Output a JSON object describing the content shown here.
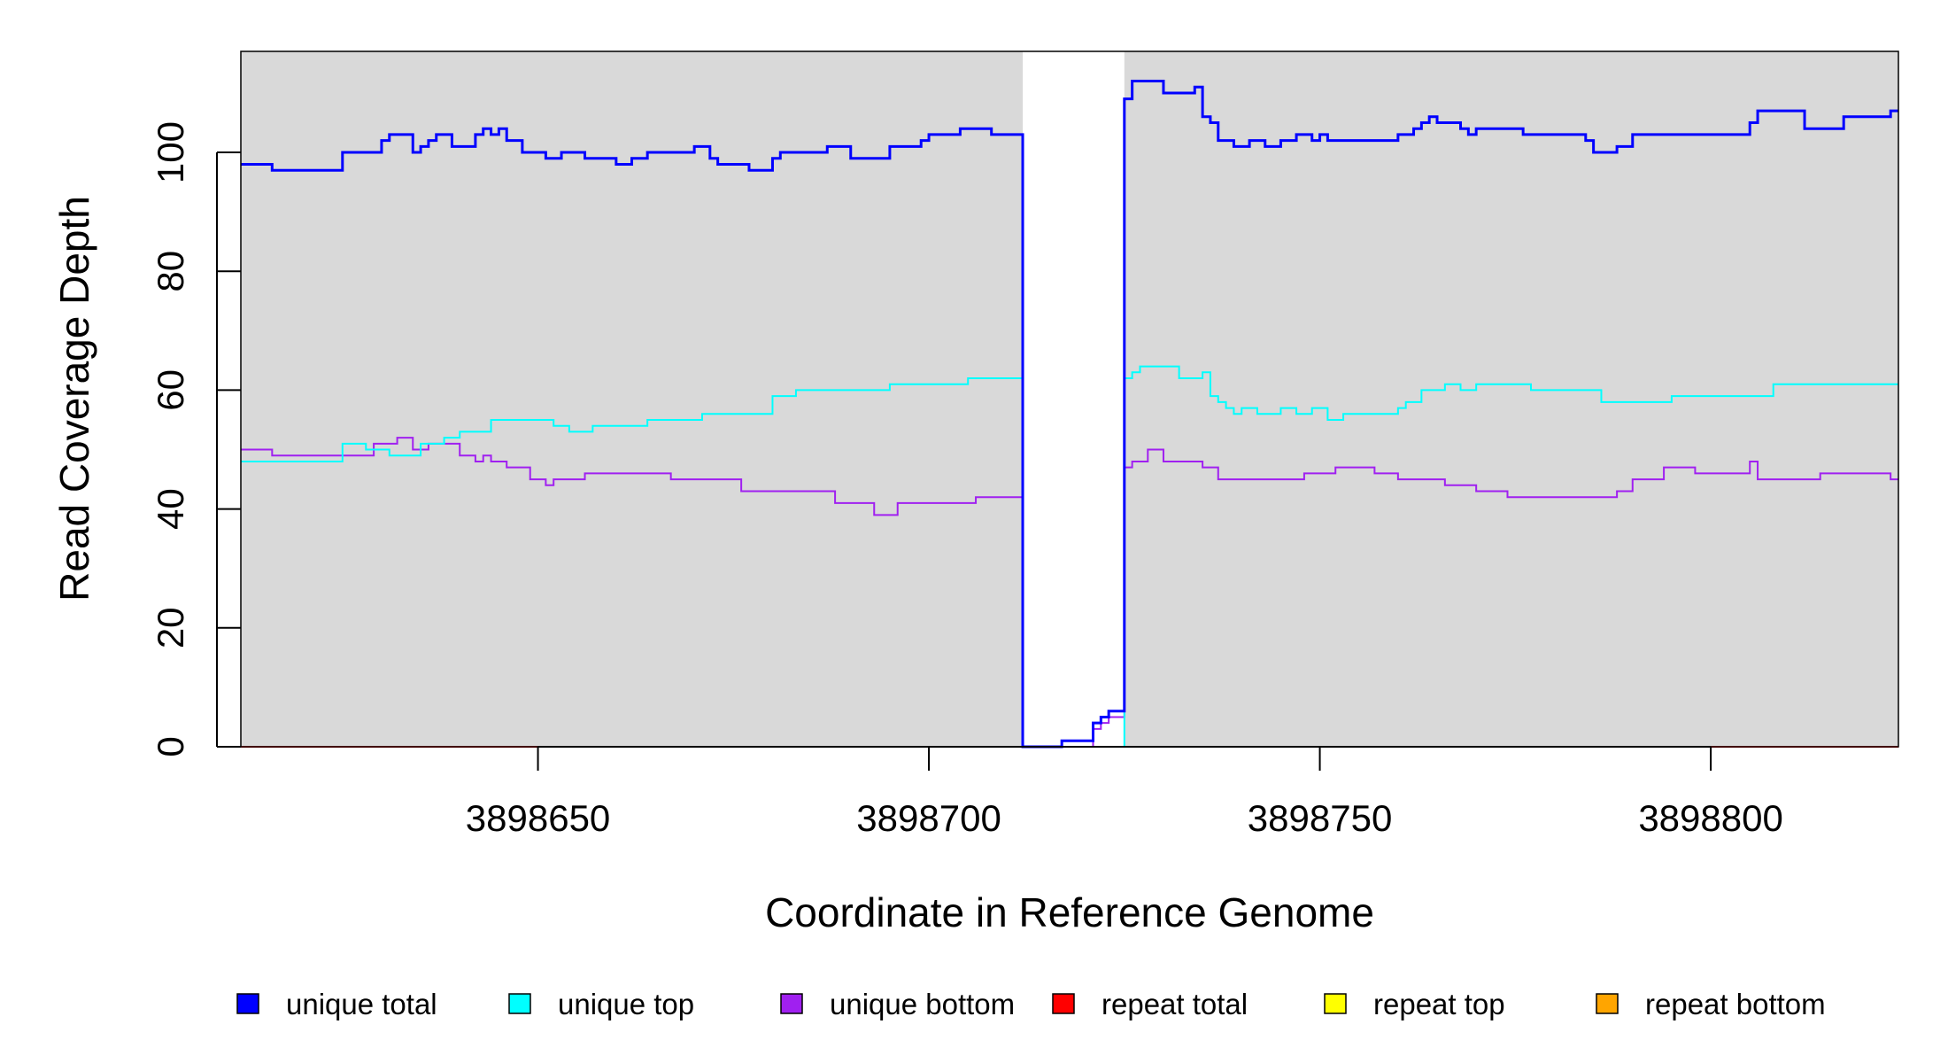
{
  "chart_data": {
    "type": "line",
    "step": true,
    "title": "",
    "xlabel": "Coordinate in Reference Genome",
    "ylabel": "Read Coverage Depth",
    "xlim": [
      3898612,
      3898824
    ],
    "ylim": [
      0,
      117
    ],
    "xticks": [
      3898650,
      3898700,
      3898750,
      3898800
    ],
    "yticks": [
      0,
      20,
      40,
      60,
      80,
      100
    ],
    "background_color": "#d9d9d9",
    "highlight_region": {
      "x": [
        3898712,
        3898725
      ],
      "color": "#ffffff"
    },
    "grid": false,
    "legend_position": "bottom",
    "legend": [
      {
        "name": "unique total",
        "color": "#0000ff"
      },
      {
        "name": "unique top",
        "color": "#00ffff"
      },
      {
        "name": "unique bottom",
        "color": "#a020f0"
      },
      {
        "name": "repeat total",
        "color": "#ff0000"
      },
      {
        "name": "repeat top",
        "color": "#ffff00"
      },
      {
        "name": "repeat bottom",
        "color": "#ffa500"
      }
    ],
    "series": [
      {
        "name": "unique total",
        "color": "#0000ff",
        "x": [
          3898612,
          3898616,
          3898625,
          3898630,
          3898631,
          3898634,
          3898635,
          3898636,
          3898637,
          3898639,
          3898642,
          3898643,
          3898644,
          3898645,
          3898646,
          3898648,
          3898651,
          3898653,
          3898656,
          3898660,
          3898662,
          3898664,
          3898670,
          3898672,
          3898673,
          3898677,
          3898680,
          3898681,
          3898687,
          3898690,
          3898695,
          3898699,
          3898700,
          3898704,
          3898708,
          3898712,
          3898717,
          3898721,
          3898722,
          3898723,
          3898725,
          3898726,
          3898730,
          3898734,
          3898735,
          3898736,
          3898737,
          3898739,
          3898741,
          3898743,
          3898745,
          3898747,
          3898749,
          3898750,
          3898751,
          3898760,
          3898762,
          3898763,
          3898764,
          3898765,
          3898768,
          3898769,
          3898770,
          3898776,
          3898784,
          3898785,
          3898788,
          3898790,
          3898805,
          3898806,
          3898812,
          3898817,
          3898823
        ],
        "y": [
          98,
          97,
          100,
          102,
          103,
          100,
          101,
          102,
          103,
          101,
          103,
          104,
          103,
          104,
          102,
          100,
          99,
          100,
          99,
          98,
          99,
          100,
          101,
          99,
          98,
          97,
          99,
          100,
          101,
          99,
          101,
          102,
          103,
          104,
          103,
          0,
          1,
          4,
          5,
          6,
          109,
          112,
          110,
          111,
          106,
          105,
          102,
          101,
          102,
          101,
          102,
          103,
          102,
          103,
          102,
          103,
          104,
          105,
          106,
          105,
          104,
          103,
          104,
          103,
          102,
          100,
          101,
          103,
          105,
          107,
          104,
          106,
          107
        ]
      },
      {
        "name": "unique top",
        "color": "#00ffff",
        "x": [
          3898612,
          3898625,
          3898628,
          3898631,
          3898635,
          3898638,
          3898640,
          3898644,
          3898652,
          3898654,
          3898657,
          3898664,
          3898671,
          3898680,
          3898683,
          3898688,
          3898694,
          3898695,
          3898705,
          3898712,
          3898725,
          3898726,
          3898727,
          3898732,
          3898735,
          3898736,
          3898737,
          3898738,
          3898739,
          3898740,
          3898742,
          3898745,
          3898747,
          3898749,
          3898751,
          3898753,
          3898755,
          3898760,
          3898761,
          3898763,
          3898766,
          3898768,
          3898770,
          3898772,
          3898777,
          3898786,
          3898789,
          3898790,
          3898795,
          3898808,
          3898824
        ],
        "y": [
          48,
          51,
          50,
          49,
          51,
          52,
          53,
          55,
          54,
          53,
          54,
          55,
          56,
          59,
          60,
          60,
          60,
          61,
          62,
          0,
          62,
          63,
          64,
          62,
          63,
          59,
          58,
          57,
          56,
          57,
          56,
          57,
          56,
          57,
          55,
          56,
          56,
          57,
          58,
          60,
          61,
          60,
          61,
          61,
          60,
          58,
          58,
          58,
          59,
          61,
          61
        ]
      },
      {
        "name": "unique bottom",
        "color": "#a020f0",
        "x": [
          3898612,
          3898616,
          3898626,
          3898629,
          3898632,
          3898634,
          3898636,
          3898638,
          3898640,
          3898642,
          3898643,
          3898644,
          3898646,
          3898649,
          3898651,
          3898652,
          3898656,
          3898667,
          3898669,
          3898676,
          3898688,
          3898693,
          3898696,
          3898706,
          3898712,
          3898716,
          3898721,
          3898722,
          3898723,
          3898725,
          3898726,
          3898728,
          3898730,
          3898735,
          3898737,
          3898748,
          3898749,
          3898752,
          3898753,
          3898757,
          3898760,
          3898766,
          3898770,
          3898774,
          3898776,
          3898788,
          3898790,
          3898794,
          3898798,
          3898805,
          3898806,
          3898814,
          3898823
        ],
        "y": [
          50,
          49,
          49,
          51,
          52,
          50,
          51,
          51,
          49,
          48,
          49,
          48,
          47,
          45,
          44,
          45,
          46,
          45,
          45,
          43,
          41,
          39,
          41,
          42,
          0,
          0,
          3,
          4,
          5,
          47,
          48,
          50,
          48,
          47,
          45,
          46,
          46,
          47,
          47,
          46,
          45,
          44,
          43,
          42,
          42,
          43,
          45,
          47,
          46,
          48,
          45,
          46,
          45
        ]
      },
      {
        "name": "repeat total",
        "color": "#ff0000",
        "x": [
          3898612,
          3898824
        ],
        "y": [
          0,
          0
        ]
      },
      {
        "name": "repeat top",
        "color": "#ffff00",
        "x": [
          3898612,
          3898824
        ],
        "y": [
          0,
          0
        ]
      },
      {
        "name": "repeat bottom",
        "color": "#ffa500",
        "x": [
          3898612,
          3898824
        ],
        "y": [
          0,
          0
        ]
      }
    ]
  }
}
